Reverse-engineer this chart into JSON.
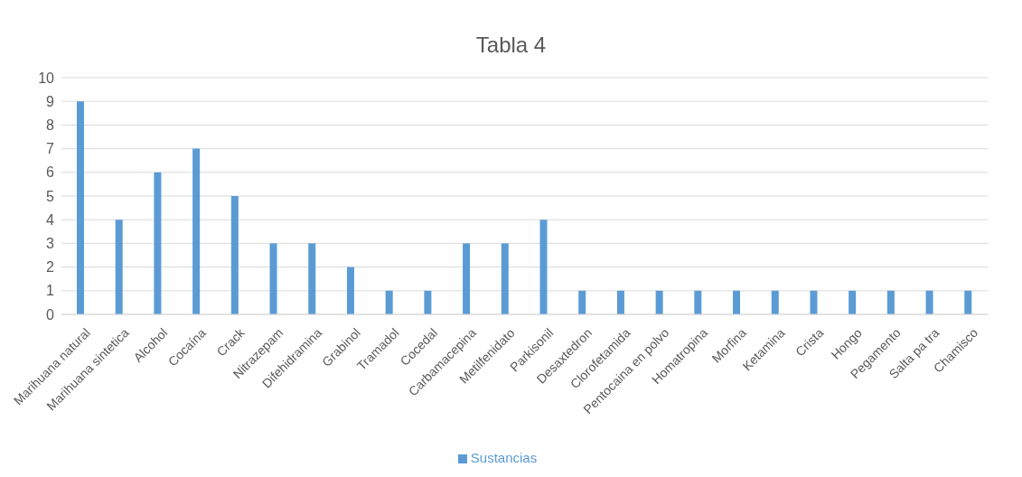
{
  "chart_data": {
    "type": "bar",
    "title": "Tabla 4",
    "categories": [
      "Marihuana natural",
      "Marihuana sintetica",
      "Alcohol",
      "Cocaína",
      "Crack",
      "Nitrazepam",
      "Difehidramina",
      "Grabinol",
      "Tramadol",
      "Cocedal",
      "Carbamacepina",
      "Metilfenidato",
      "Parkisonil",
      "Desaxtedron",
      "Clorofetamida",
      "Pentocaina en polvo",
      "Homatropina",
      "Morfina",
      "Ketamina",
      "Crista",
      "Hongo",
      "Pegamento",
      "Salta pa tra",
      "Chamisco"
    ],
    "series": [
      {
        "name": "Sustancias",
        "color": "#5b9bd5",
        "values": [
          9,
          4,
          6,
          7,
          5,
          3,
          3,
          2,
          1,
          1,
          3,
          3,
          4,
          1,
          1,
          1,
          1,
          1,
          1,
          1,
          1,
          1,
          1,
          1
        ]
      }
    ],
    "ylim": [
      0,
      10
    ],
    "yticks": [
      0,
      1,
      2,
      3,
      4,
      5,
      6,
      7,
      8,
      9,
      10
    ],
    "grid": "y",
    "legend": "bottom"
  }
}
